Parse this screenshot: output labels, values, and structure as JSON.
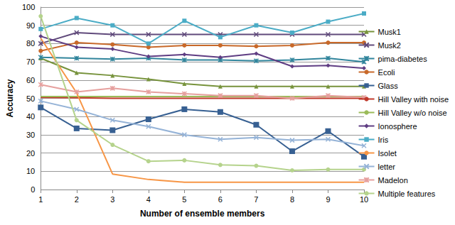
{
  "chart_data": {
    "type": "line",
    "x_label": "Number of ensemble members",
    "y_label": "Accuracy",
    "categories": [
      1,
      2,
      3,
      4,
      5,
      6,
      7,
      8,
      9,
      10
    ],
    "ylim": [
      0,
      100
    ],
    "yticks": [
      0,
      10,
      20,
      30,
      40,
      50,
      60,
      70,
      80,
      90,
      100
    ],
    "grid": true,
    "legend": "right",
    "series": [
      {
        "name": "Musk1",
        "color": "#77933c",
        "marker": "triangle",
        "values": [
          72,
          64,
          62.5,
          60.5,
          58,
          56.5,
          56.5,
          56.5,
          56.5,
          56.5
        ]
      },
      {
        "name": "Musk2",
        "color": "#604a7b",
        "marker": "x",
        "values": [
          80,
          86,
          85,
          85,
          85,
          85,
          85,
          85,
          85,
          85
        ]
      },
      {
        "name": "pima-diabetes",
        "color": "#31859c",
        "marker": "asterisk",
        "values": [
          72.5,
          72,
          71.5,
          72,
          71,
          71,
          70.5,
          71,
          72,
          70
        ]
      },
      {
        "name": "Ecoli",
        "color": "#c8692a",
        "marker": "circle",
        "values": [
          76,
          80.5,
          79.5,
          78,
          79,
          79,
          78.5,
          79,
          80.5,
          80.5
        ]
      },
      {
        "name": "Glass",
        "color": "#376092",
        "marker": "dash",
        "values": [
          45,
          33.5,
          32.5,
          38.5,
          44,
          42.5,
          35.5,
          21,
          32,
          18
        ]
      },
      {
        "name": "Hill Valley with noise",
        "color": "#c0392b",
        "marker": "none",
        "values": [
          50.5,
          50.3,
          50,
          50,
          50,
          50,
          50,
          50,
          50,
          50
        ]
      },
      {
        "name": "Hill Valley w/o noise",
        "color": "#9bbb59",
        "marker": "none",
        "values": [
          51,
          51,
          51,
          51,
          51,
          51,
          51,
          51,
          51,
          51
        ]
      },
      {
        "name": "Ionosphere",
        "color": "#5f3d83",
        "marker": "diamond",
        "values": [
          84,
          78,
          77,
          73,
          74,
          72.5,
          74.5,
          67.5,
          68,
          66.5
        ]
      },
      {
        "name": "Iris",
        "color": "#4bacc6",
        "marker": "square",
        "values": [
          88,
          94,
          90,
          80,
          92.5,
          83.5,
          90,
          86,
          92,
          96.5
        ]
      },
      {
        "name": "Isolet",
        "color": "#f79646",
        "marker": "none",
        "values": [
          83,
          53,
          8.5,
          5.5,
          4,
          4,
          4,
          4,
          4,
          4
        ]
      },
      {
        "name": "letter",
        "color": "#95b3d7",
        "marker": "x",
        "values": [
          48.5,
          44,
          38,
          34.5,
          30,
          27.5,
          28.5,
          27,
          27.5,
          24
        ]
      },
      {
        "name": "Madelon",
        "color": "#e6a09e",
        "marker": "asterisk",
        "values": [
          57.5,
          53.5,
          55.5,
          53.5,
          52.5,
          51.5,
          51.5,
          50,
          51.5,
          50.5
        ]
      },
      {
        "name": "Multiple features",
        "color": "#b5d38c",
        "marker": "circle",
        "values": [
          95,
          38,
          24.5,
          15.5,
          16,
          13.5,
          13,
          10.5,
          11,
          11
        ]
      }
    ]
  }
}
